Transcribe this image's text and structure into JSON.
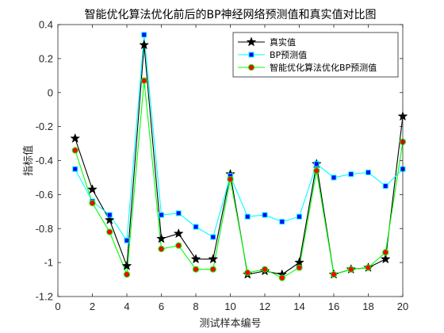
{
  "chart_data": {
    "type": "line",
    "title": "智能优化算法优化前后的BP神经网络预测值和真实值对比图",
    "xlabel": "测试样本编号",
    "ylabel": "指标值",
    "xlim": [
      0,
      20
    ],
    "ylim": [
      -1.2,
      0.4
    ],
    "xticks": [
      0,
      2,
      4,
      6,
      8,
      10,
      12,
      14,
      16,
      18,
      20
    ],
    "yticks": [
      -1.2,
      -1,
      -0.8,
      -0.6,
      -0.4,
      -0.2,
      0,
      0.2,
      0.4
    ],
    "ytick_labels": [
      "-1.2",
      "-1",
      "-0.8",
      "-0.6",
      "-0.4",
      "-0.2",
      "0",
      "0.2",
      "0.4"
    ],
    "grid": false,
    "legend_position": "top-right",
    "x": [
      1,
      2,
      3,
      4,
      5,
      6,
      7,
      8,
      9,
      10,
      11,
      12,
      13,
      14,
      15,
      16,
      17,
      18,
      19,
      20
    ],
    "series": [
      {
        "name": "真实值",
        "color": "#000000",
        "marker": "star",
        "values": [
          -0.27,
          -0.57,
          -0.75,
          -1.02,
          0.28,
          -0.86,
          -0.83,
          -0.98,
          -0.98,
          -0.48,
          -1.07,
          -1.05,
          -1.07,
          -1.0,
          -0.42,
          -1.07,
          -1.04,
          -1.03,
          -0.98,
          -0.14
        ]
      },
      {
        "name": "BP预测值",
        "color": "#00ffff",
        "marker": "square",
        "marker_fill": "#0000ff",
        "values": [
          -0.45,
          -0.64,
          -0.72,
          -0.87,
          0.34,
          -0.72,
          -0.71,
          -0.79,
          -0.85,
          -0.49,
          -0.73,
          -0.72,
          -0.76,
          -0.73,
          -0.42,
          -0.5,
          -0.48,
          -0.47,
          -0.55,
          -0.45
        ]
      },
      {
        "name": "智能优化算法优化BP预测值",
        "color": "#00ff00",
        "marker": "circle",
        "marker_fill": "#ff0000",
        "values": [
          -0.34,
          -0.65,
          -0.82,
          -1.07,
          0.07,
          -0.92,
          -0.9,
          -1.04,
          -1.04,
          -0.51,
          -1.06,
          -1.04,
          -1.09,
          -1.03,
          -0.46,
          -1.07,
          -1.04,
          -1.03,
          -0.94,
          -0.29
        ]
      }
    ]
  }
}
